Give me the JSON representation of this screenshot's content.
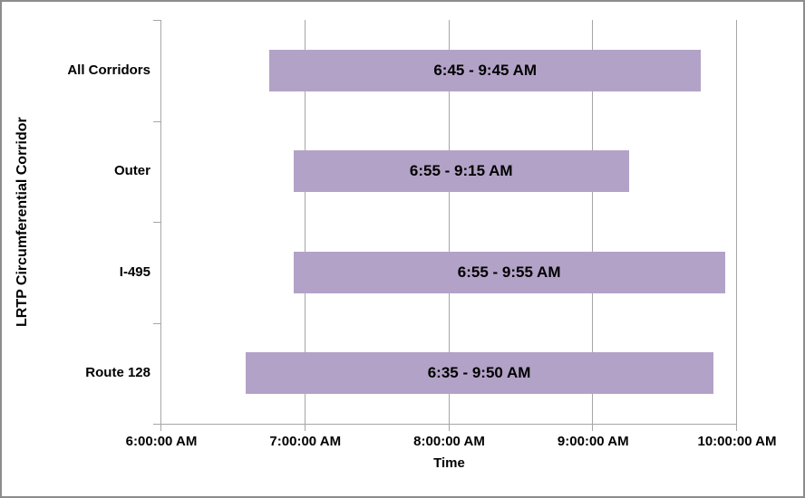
{
  "chart_data": {
    "type": "bar",
    "subtype": "horizontal-range",
    "title": "",
    "xlabel": "Time",
    "ylabel": "LRTP Circumferential Corridor",
    "categories": [
      "All Corridors",
      "Outer",
      "I-495",
      "Route 128"
    ],
    "bars": [
      {
        "category": "All Corridors",
        "start_hour": 6.75,
        "end_hour": 9.75,
        "label": "6:45 - 9:45 AM"
      },
      {
        "category": "Outer",
        "start_hour": 6.9167,
        "end_hour": 9.25,
        "label": "6:55 - 9:15 AM"
      },
      {
        "category": "I-495",
        "start_hour": 6.9167,
        "end_hour": 9.9167,
        "label": "6:55 - 9:55 AM"
      },
      {
        "category": "Route 128",
        "start_hour": 6.5833,
        "end_hour": 9.8333,
        "label": "6:35 - 9:50 AM"
      }
    ],
    "x_ticks": [
      {
        "hour": 6,
        "label": "6:00:00 AM"
      },
      {
        "hour": 7,
        "label": "7:00:00 AM"
      },
      {
        "hour": 8,
        "label": "8:00:00 AM"
      },
      {
        "hour": 9,
        "label": "9:00:00 AM"
      },
      {
        "hour": 10,
        "label": "10:00:00 AM"
      }
    ],
    "x_range_hours": [
      6,
      10
    ],
    "grid": true,
    "legend": false,
    "colors": {
      "bar_fill": "#b3a2c7",
      "gridline": "#a6a6a6",
      "axis_line": "#a6a6a6",
      "text": "#000000",
      "chart_border": "#8c8c8c",
      "background": "#ffffff"
    }
  }
}
